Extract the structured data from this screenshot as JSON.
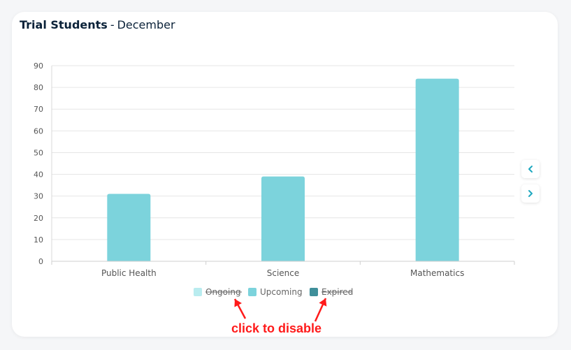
{
  "header": {
    "title": "Trial Students",
    "separator": "-",
    "month": "December"
  },
  "chart_data": {
    "type": "bar",
    "categories": [
      "Public Health",
      "Science",
      "Mathematics"
    ],
    "series": [
      {
        "name": "Ongoing",
        "values": [
          0,
          0,
          0
        ],
        "color": "#b9ecef",
        "disabled": true
      },
      {
        "name": "Upcoming",
        "values": [
          31,
          39,
          84
        ],
        "color": "#7cd3dc",
        "disabled": false
      },
      {
        "name": "Expired",
        "values": [
          0,
          0,
          0
        ],
        "color": "#3f8f9a",
        "disabled": true
      }
    ],
    "ylim": [
      0,
      90
    ],
    "yticks": [
      0,
      10,
      20,
      30,
      40,
      50,
      60,
      70,
      80,
      90
    ],
    "grid": true,
    "legend_position": "bottom-center"
  },
  "nav": {
    "prev_icon": "chevron-left-icon",
    "next_icon": "chevron-right-icon",
    "color": "#1fa8c0"
  },
  "annotation": {
    "text": "click to disable",
    "color": "#ff1a1a"
  }
}
